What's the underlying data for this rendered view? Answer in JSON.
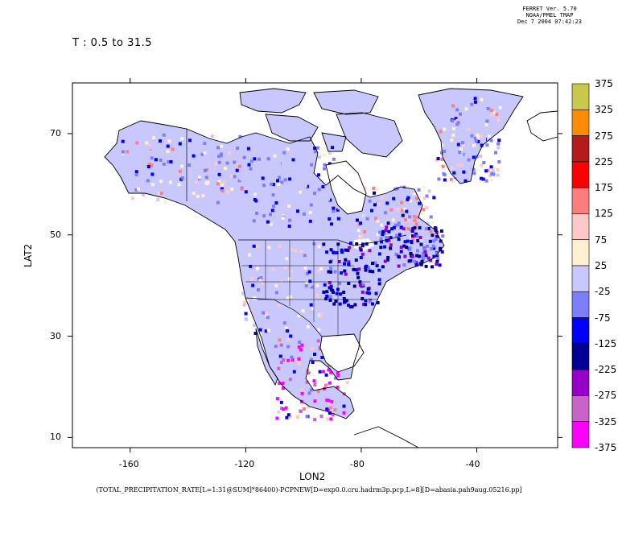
{
  "header": {
    "ferret_lines": [
      "FERRET Ver. 5.70",
      "NOAA/PMEL TMAP",
      "Dec  7 2004 07:42:23"
    ],
    "time_label": "T : 0.5 to 31.5"
  },
  "axes": {
    "xlabel": "LON2",
    "ylabel": "LAT2",
    "xticks": [
      "-160",
      "-120",
      "-80",
      "-40"
    ],
    "xtick_values": [
      -160,
      -120,
      -80,
      -40
    ],
    "yticks": [
      "10",
      "30",
      "50",
      "70"
    ],
    "ytick_values": [
      10,
      30,
      50,
      70
    ],
    "xlim": [
      -180,
      -12
    ],
    "ylim": [
      8,
      80
    ]
  },
  "colorbar": {
    "labels": [
      "375",
      "325",
      "275",
      "225",
      "175",
      "125",
      "75",
      "25",
      "-25",
      "-75",
      "-125",
      "-225",
      "-275",
      "-325",
      "-375"
    ],
    "colors": [
      "#c8c84a",
      "#ff8c00",
      "#b41c1c",
      "#ff0000",
      "#ff7d7d",
      "#ffc8c8",
      "#fff0d2",
      "#c8c8ff",
      "#7d7dff",
      "#0000ff",
      "#000096",
      "#9600c8",
      "#c864c8",
      "#ff00ff"
    ]
  },
  "caption": "(TOTAL_PRECIPITATION_RATE[L=1:31@SUM]*86400)-PCPNEW[D=exp0.0.cru.hadrm3p.pcp,L=8][D=abasia.pah9aug.05216.pp]",
  "colors": {
    "ocean": "#ffffff",
    "land_default": "#c8c8ff",
    "coast": "#000000"
  }
}
